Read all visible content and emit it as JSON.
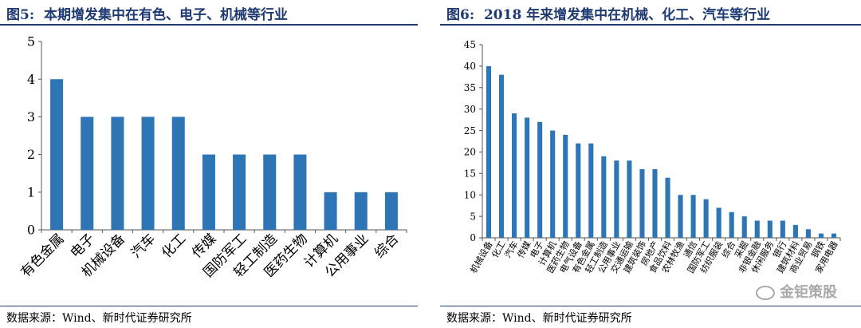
{
  "chart_data": [
    {
      "type": "bar",
      "figure_label": "图5:",
      "title": "本期增发集中在有色、电子、机械等行业",
      "categories": [
        "有色金属",
        "电子",
        "机械设备",
        "汽车",
        "化工",
        "传媒",
        "国防军工",
        "轻工制造",
        "医药生物",
        "计算机",
        "公用事业",
        "综合"
      ],
      "values": [
        4,
        3,
        3,
        3,
        3,
        2,
        2,
        2,
        2,
        1,
        1,
        1
      ],
      "ylim": [
        0,
        5
      ],
      "yticks": [
        0,
        1,
        2,
        3,
        4,
        5
      ],
      "xlabel": "",
      "ylabel": "",
      "bar_color": "#2E75B6",
      "source": "数据来源：Wind、新时代证券研究所"
    },
    {
      "type": "bar",
      "figure_label": "图6:",
      "title": "2018 年来增发集中在机械、化工、汽车等行业",
      "categories": [
        "机械设备",
        "化工",
        "汽车",
        "传媒",
        "电子",
        "计算机",
        "医药生物",
        "电气设备",
        "有色金属",
        "轻工制造",
        "公用事业",
        "交通运输",
        "建筑装饰",
        "房地产",
        "食品饮料",
        "农林牧渔",
        "通信",
        "国防军工",
        "纺织服装",
        "综合",
        "采掘",
        "非银金融",
        "休闲服务",
        "银行",
        "建筑材料",
        "商业贸易",
        "钢铁",
        "家用电器"
      ],
      "values": [
        40,
        38,
        29,
        28,
        27,
        25,
        24,
        22,
        22,
        19,
        18,
        18,
        16,
        16,
        14,
        10,
        10,
        9,
        7,
        6,
        5,
        4,
        4,
        4,
        3,
        2,
        1,
        1
      ],
      "ylim": [
        0,
        45
      ],
      "yticks": [
        0,
        5,
        10,
        15,
        20,
        25,
        30,
        35,
        40,
        45
      ],
      "xlabel": "",
      "ylabel": "",
      "bar_color": "#2E75B6",
      "source": "数据来源：Wind、新时代证券研究所"
    }
  ],
  "watermark": "金钜策股"
}
